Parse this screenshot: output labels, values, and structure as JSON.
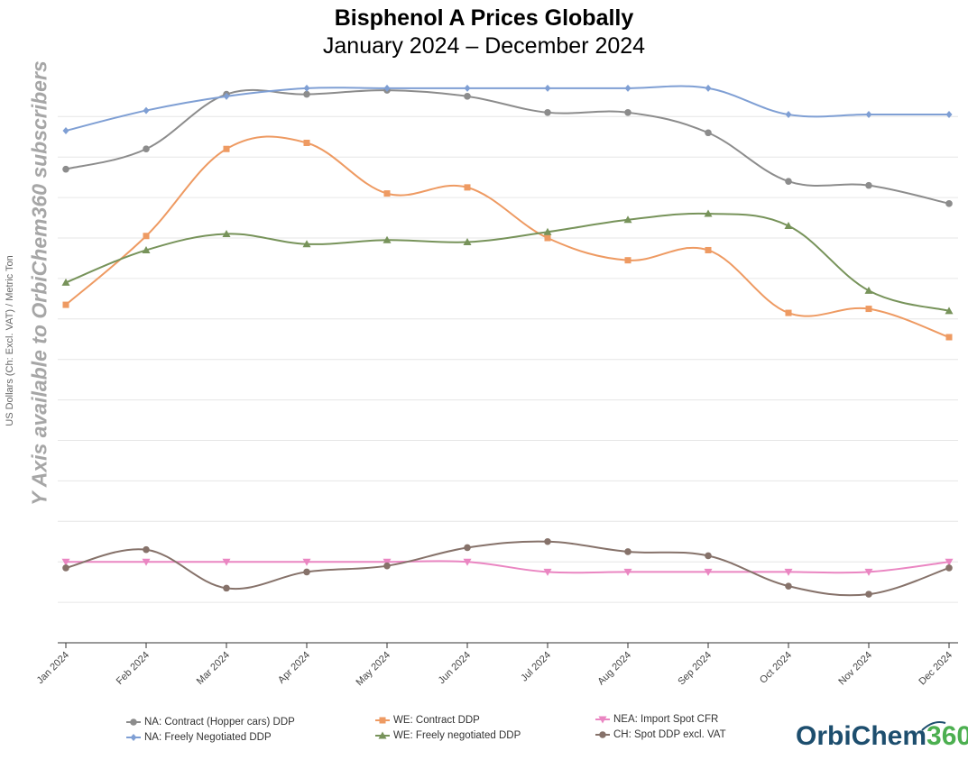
{
  "chart_data": {
    "type": "line",
    "title": "Bisphenol A Prices Globally",
    "subtitle": "January 2024 – December 2024",
    "ylabel": "US Dollars (Ch: Excl. VAT) / Metric Ton",
    "watermark": "Y Axis available to OrbiChem360 subscribers",
    "categories": [
      "Jan 2024",
      "Feb 2024",
      "Mar 2024",
      "Apr 2024",
      "May 2024",
      "Jun 2024",
      "Jul 2024",
      "Aug 2024",
      "Sep 2024",
      "Oct 2024",
      "Nov 2024",
      "Dec 2024"
    ],
    "y_unit_note": "values expressed in hidden-axis grid units (axis bottom = 0, top grid line = 13)",
    "ylim": [
      0,
      13.8
    ],
    "grid": true,
    "legend_position": "bottom",
    "series": [
      {
        "name": "NA: Contract (Hopper cars) DDP",
        "color": "#8c8c8c",
        "marker": "circle",
        "values": [
          11.7,
          12.2,
          13.55,
          13.55,
          13.65,
          13.5,
          13.1,
          13.1,
          12.6,
          11.4,
          11.3,
          10.85
        ]
      },
      {
        "name": "NA: Freely Negotiated DDP",
        "color": "#7f9fd4",
        "marker": "diamond",
        "values": [
          12.65,
          13.15,
          13.5,
          13.7,
          13.7,
          13.7,
          13.7,
          13.7,
          13.7,
          13.05,
          13.05,
          13.05
        ]
      },
      {
        "name": "WE: Contract DDP",
        "color": "#ee9a62",
        "marker": "square",
        "values": [
          8.35,
          10.05,
          12.2,
          12.35,
          11.1,
          11.25,
          10.0,
          9.45,
          9.7,
          8.15,
          8.25,
          7.55
        ]
      },
      {
        "name": "WE: Freely negotiated DDP",
        "color": "#77935a",
        "marker": "triangle",
        "values": [
          8.9,
          9.7,
          10.1,
          9.85,
          9.95,
          9.9,
          10.15,
          10.45,
          10.6,
          10.3,
          8.7,
          8.2
        ]
      },
      {
        "name": "NEA: Import Spot CFR",
        "color": "#ea86c2",
        "marker": "triangle-down",
        "values": [
          2.0,
          2.0,
          2.0,
          2.0,
          2.0,
          2.0,
          1.75,
          1.75,
          1.75,
          1.75,
          1.75,
          2.0
        ]
      },
      {
        "name": "CH: Spot DDP excl. VAT",
        "color": "#86726a",
        "marker": "circle",
        "values": [
          1.85,
          2.3,
          1.35,
          1.75,
          1.9,
          2.35,
          2.5,
          2.25,
          2.15,
          1.4,
          1.2,
          1.85
        ]
      }
    ]
  },
  "logo": {
    "text_main": "OrbiChem",
    "text_num": "360"
  }
}
